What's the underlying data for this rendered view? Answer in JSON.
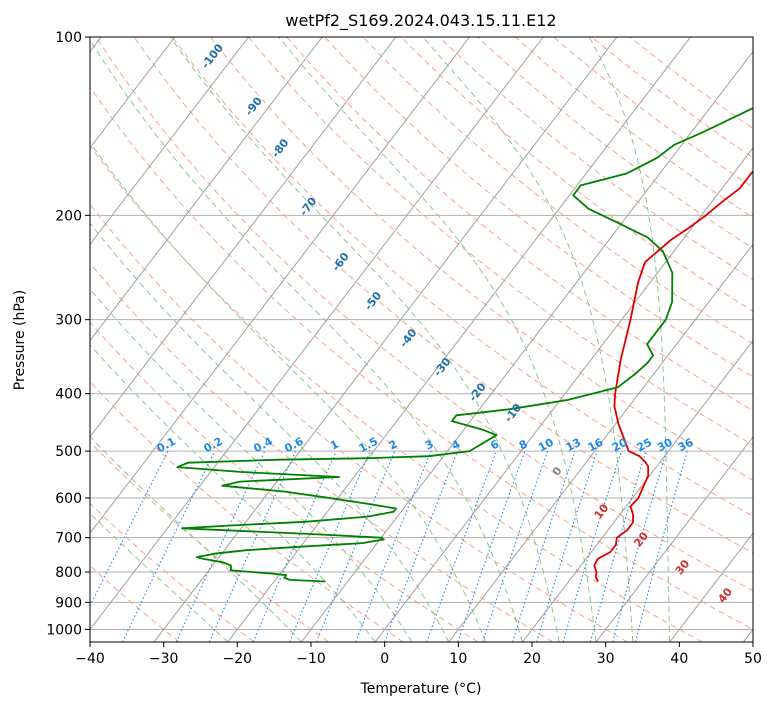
{
  "chart_data": {
    "type": "line",
    "title": "wetPf2_S169.2024.043.15.11.E12",
    "xlabel": "Temperature (°C)",
    "ylabel": "Pressure (hPa)",
    "xlim": [
      -40,
      50
    ],
    "ylim": [
      1050,
      100
    ],
    "y_scale": "log",
    "x_ticks": [
      -40,
      -30,
      -20,
      -10,
      0,
      10,
      20,
      30,
      40,
      50
    ],
    "x_tick_labels": [
      "−40",
      "−30",
      "−20",
      "−10",
      "0",
      "10",
      "20",
      "30",
      "40",
      "50"
    ],
    "y_ticks": [
      100,
      200,
      300,
      400,
      500,
      600,
      700,
      800,
      900,
      1000
    ],
    "y_tick_labels": [
      "100",
      "200",
      "300",
      "400",
      "500",
      "600",
      "700",
      "800",
      "900",
      "1000"
    ],
    "grid": true,
    "series": [
      {
        "color": "#e00000",
        "style": "solid",
        "points": [
          [
            24.0,
            830
          ],
          [
            23.2,
            815
          ],
          [
            22.8,
            800
          ],
          [
            21.8,
            780
          ],
          [
            21.6,
            760
          ],
          [
            22.6,
            740
          ],
          [
            22.6,
            720
          ],
          [
            22.0,
            700
          ],
          [
            22.6,
            680
          ],
          [
            22.6,
            660
          ],
          [
            21.8,
            640
          ],
          [
            20.6,
            620
          ],
          [
            20.8,
            600
          ],
          [
            20.2,
            570
          ],
          [
            19.8,
            550
          ],
          [
            18.8,
            530
          ],
          [
            17.8,
            520
          ],
          [
            16.6,
            510
          ],
          [
            14.6,
            500
          ],
          [
            10.4,
            450
          ],
          [
            8.0,
            420
          ],
          [
            6.8,
            400
          ],
          [
            4.0,
            350
          ],
          [
            1.2,
            300
          ],
          [
            -1.6,
            260
          ],
          [
            -2.8,
            240
          ],
          [
            -1.6,
            220
          ],
          [
            -0.4,
            210
          ],
          [
            0.6,
            200
          ],
          [
            1.4,
            190
          ],
          [
            2.4,
            180
          ],
          [
            2.4,
            170
          ],
          [
            2.8,
            160
          ],
          [
            3.6,
            150
          ],
          [
            4.2,
            140
          ],
          [
            4.2,
            130
          ],
          [
            3.8,
            120
          ],
          [
            3.4,
            110
          ],
          [
            2.6,
            100
          ]
        ]
      },
      {
        "color": "#008000",
        "style": "solid",
        "points": [
          [
            -13.0,
            830
          ],
          [
            -18.0,
            825
          ],
          [
            -19.0,
            818
          ],
          [
            -19.0,
            810
          ],
          [
            -21.0,
            805
          ],
          [
            -27.0,
            795
          ],
          [
            -27.5,
            780
          ],
          [
            -29.0,
            770
          ],
          [
            -32.0,
            760
          ],
          [
            -33.0,
            755
          ],
          [
            -31.0,
            745
          ],
          [
            -27.0,
            735
          ],
          [
            -20.0,
            725
          ],
          [
            -12.0,
            715
          ],
          [
            -9.5,
            705
          ],
          [
            -10.0,
            700
          ],
          [
            -20.0,
            690
          ],
          [
            -38.0,
            675
          ],
          [
            -32.0,
            668
          ],
          [
            -22.0,
            658
          ],
          [
            -14.0,
            645
          ],
          [
            -11.0,
            633
          ],
          [
            -11.0,
            625
          ],
          [
            -16.0,
            612
          ],
          [
            -22.0,
            598
          ],
          [
            -28.0,
            585
          ],
          [
            -37.0,
            572
          ],
          [
            -35.0,
            563
          ],
          [
            -22.0,
            553
          ],
          [
            -36.0,
            542
          ],
          [
            -45.0,
            532
          ],
          [
            -44.0,
            523
          ],
          [
            -32.0,
            517
          ],
          [
            -20.0,
            514
          ],
          [
            -12.0,
            510
          ],
          [
            -7.0,
            500
          ],
          [
            -5.0,
            470
          ],
          [
            -7.5,
            460
          ],
          [
            -12.5,
            445
          ],
          [
            -12.5,
            435
          ],
          [
            -6.0,
            425
          ],
          [
            1.0,
            410
          ],
          [
            6.5,
            390
          ],
          [
            7.5,
            370
          ],
          [
            8.0,
            355
          ],
          [
            8.0,
            345
          ],
          [
            6.0,
            330
          ],
          [
            6.0,
            315
          ],
          [
            6.0,
            300
          ],
          [
            5.0,
            280
          ],
          [
            2.0,
            250
          ],
          [
            -1.5,
            230
          ],
          [
            -5.0,
            218
          ],
          [
            -11.0,
            205
          ],
          [
            -16.0,
            195
          ],
          [
            -19.5,
            185
          ],
          [
            -19.5,
            178
          ],
          [
            -14.5,
            170
          ],
          [
            -12.0,
            160
          ],
          [
            -11.0,
            152
          ],
          [
            -8.5,
            145
          ],
          [
            -3.5,
            130
          ],
          [
            0.0,
            120
          ],
          [
            2.5,
            110
          ],
          [
            3.5,
            100
          ]
        ]
      }
    ],
    "isotherm_labels": [
      "-100",
      "-90",
      "-80",
      "-70",
      "-60",
      "-50",
      "-40",
      "-30",
      "-20",
      "-10",
      "0",
      "10",
      "20",
      "30",
      "40"
    ],
    "isotherm_label_colors": {
      "cold": "#1f6fa8",
      "zero": "#888888",
      "warm": "#d03030"
    },
    "mixing_ratio_labels": [
      "0.1",
      "0.2",
      "0.4",
      "0.6",
      "1",
      "1.5",
      "2",
      "3",
      "4",
      "6",
      "8",
      "10",
      "13",
      "16",
      "20",
      "25",
      "30",
      "36"
    ],
    "colors": {
      "isotherms": "#a0a0a0",
      "dry_adiabats": "#f4a58a",
      "moist_adiabats": "#8cc88c",
      "mixing_ratio": "#1e88e5",
      "grid": "#b0b0b0"
    }
  }
}
